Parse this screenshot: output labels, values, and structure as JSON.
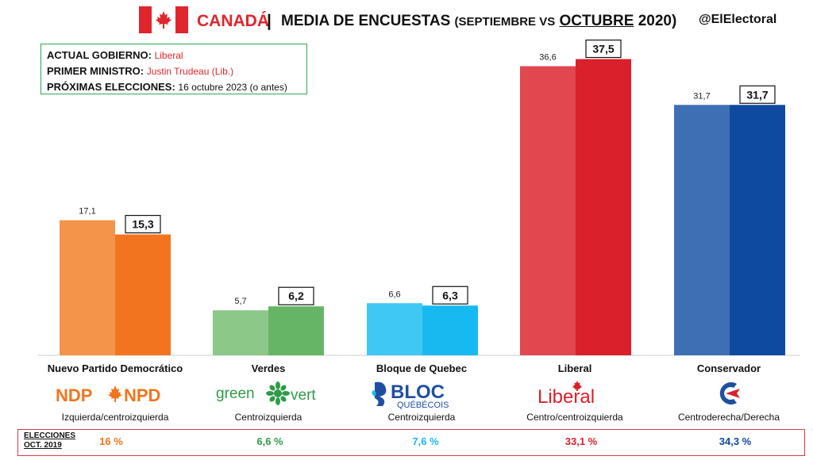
{
  "header": {
    "country": "CANADÁ",
    "separator": "|",
    "title_main": "MEDIA DE ENCUESTAS",
    "title_paren_open": "(SEPTIEMBRE VS",
    "title_paren_month": "OCTUBRE",
    "title_paren_close": "2020)",
    "handle": "@ElElectoral"
  },
  "info": {
    "gov_label": "ACTUAL GOBIERNO:",
    "gov_value": "Liberal",
    "pm_label": "PRIMER MINISTRO:",
    "pm_value": "Justin Trudeau (Lib.)",
    "next_label": "PRÓXIMAS ELECCIONES:",
    "next_value": "16 octubre 2023 (o antes)"
  },
  "chart_data": {
    "type": "bar",
    "title": "MEDIA DE ENCUESTAS (SEPTIEMBRE VS OCTUBRE 2020)",
    "categories": [
      "Nuevo Partido Democrático",
      "Verdes",
      "Bloque de Quebec",
      "Liberal",
      "Conservador"
    ],
    "series": [
      {
        "name": "SEPTIEMBRE",
        "values": [
          17.1,
          5.7,
          6.6,
          36.6,
          31.7
        ],
        "labels": [
          "17,1",
          "5,7",
          "6,6",
          "36,6",
          "31,7"
        ]
      },
      {
        "name": "OCTUBRE",
        "values": [
          15.3,
          6.2,
          6.3,
          37.5,
          31.7
        ],
        "labels": [
          "15,3",
          "6,2",
          "6,3",
          "37,5",
          "31,7"
        ]
      }
    ],
    "colors": {
      "sep": [
        "#f4944a",
        "#8cc887",
        "#40c8f4",
        "#e0474e",
        "#3e6fb5"
      ],
      "oct": [
        "#f2741e",
        "#66b566",
        "#16baf0",
        "#d9202b",
        "#0e4aa0"
      ]
    },
    "ylim": [
      0,
      40
    ],
    "xlabel": "",
    "ylabel": "",
    "grid": false,
    "legend": "none"
  },
  "parties": [
    {
      "name": "Nuevo Partido Democrático",
      "ideology": "Izquierda/centroizquierda",
      "logo": "NDP✦NPD",
      "logo_icon": "ndp-maple-logo",
      "election_2019": "16 %",
      "color": "#f2741e"
    },
    {
      "name": "Verdes",
      "ideology": "Centroizquierda",
      "logo": "green vert",
      "logo_icon": "green-flower-logo",
      "election_2019": "6,6 %",
      "color": "#2f9a4a"
    },
    {
      "name": "Bloque de Quebec",
      "ideology": "Centroizquierda",
      "logo": "BLOC QUÉBÉCOIS",
      "logo_icon": "bloc-quebecois-logo",
      "election_2019": "7,6 %",
      "color": "#16baf0"
    },
    {
      "name": "Liberal",
      "ideology": "Centro/centroizquierda",
      "logo": "Liberal",
      "logo_icon": "liberal-maple-logo",
      "election_2019": "33,1 %",
      "color": "#d9202b"
    },
    {
      "name": "Conservador",
      "ideology": "Centroderecha/Derecha",
      "logo": "",
      "logo_icon": "conservative-c-logo",
      "election_2019": "34,3 %",
      "color": "#0e4aa0"
    }
  ],
  "elections": {
    "label_line1": "ELECCIONES",
    "label_line2": "OCT. 2019"
  }
}
